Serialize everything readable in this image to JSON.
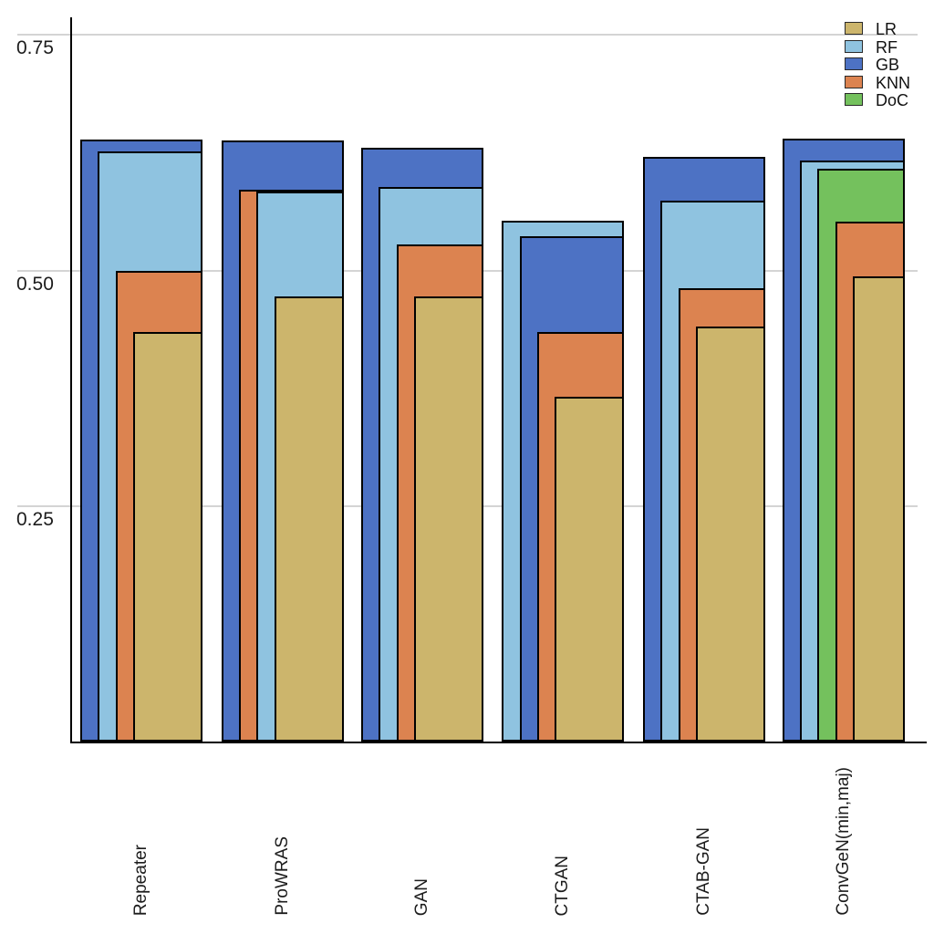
{
  "chart_data": {
    "type": "bar",
    "variant": "overlapping-nested-bars",
    "title": "",
    "xlabel": "",
    "ylabel": "",
    "categories": [
      "Repeater",
      "ProWRAS",
      "GAN",
      "CTGAN",
      "CTAB-GAN",
      "ConvGeN(min,maj)"
    ],
    "series": [
      {
        "name": "LR",
        "color": "#ccb56c",
        "values": [
          0.435,
          0.472,
          0.472,
          0.366,
          0.44,
          0.494
        ]
      },
      {
        "name": "RF",
        "color": "#8fc3e0",
        "values": [
          0.626,
          0.584,
          0.589,
          0.553,
          0.574,
          0.617
        ]
      },
      {
        "name": "GB",
        "color": "#4d72c4",
        "values": [
          0.639,
          0.638,
          0.63,
          0.536,
          0.621,
          0.64
        ]
      },
      {
        "name": "KNN",
        "color": "#dc8350",
        "values": [
          0.5,
          0.586,
          0.528,
          0.435,
          0.481,
          0.552
        ]
      },
      {
        "name": "DoC",
        "color": "#74c15d",
        "values": [
          null,
          null,
          null,
          null,
          null,
          0.608
        ]
      }
    ],
    "yticks": [
      {
        "value": 0.25,
        "label": "0.25"
      },
      {
        "value": 0.5,
        "label": "0.50"
      },
      {
        "value": 0.75,
        "label": "0.75"
      }
    ],
    "ylim": [
      0,
      0.77
    ],
    "grid": "horizontal",
    "gridline_color": "#d4d4d4",
    "bar_outline_color": "#000000",
    "axis_color": "#000000",
    "legend": {
      "position": "top-right",
      "entries": [
        "LR",
        "RF",
        "GB",
        "KNN",
        "DoC"
      ]
    }
  }
}
